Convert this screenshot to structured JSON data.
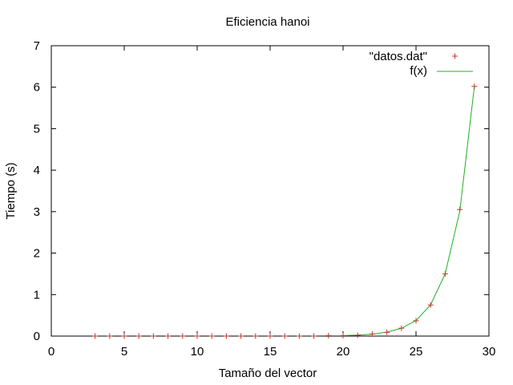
{
  "chart_data": {
    "type": "scatter",
    "title": "Eficiencia hanoi",
    "xlabel": "Tamaño del vector",
    "ylabel": "Tiempo (s)",
    "xlim": [
      0,
      30
    ],
    "ylim": [
      0,
      7
    ],
    "xticks": [
      0,
      5,
      10,
      15,
      20,
      25,
      30
    ],
    "yticks": [
      0,
      1,
      2,
      3,
      4,
      5,
      6,
      7
    ],
    "grid": false,
    "legend_position": "top-right",
    "series": [
      {
        "name": "\"datos.dat\"",
        "style": "points",
        "marker": "+",
        "color": "#c0392b",
        "x": [
          3,
          4,
          5,
          6,
          7,
          8,
          9,
          10,
          11,
          12,
          13,
          14,
          15,
          16,
          17,
          18,
          19,
          20,
          21,
          22,
          23,
          24,
          25,
          26,
          27,
          28,
          29
        ],
        "y": [
          0,
          0,
          0,
          0,
          0,
          0,
          0,
          0,
          0,
          0,
          0,
          0,
          0,
          0,
          0,
          0,
          0.01,
          0.01,
          0.02,
          0.05,
          0.09,
          0.19,
          0.37,
          0.75,
          1.5,
          3.05,
          6.02
        ]
      },
      {
        "name": "f(x)",
        "style": "line",
        "color": "#20b020",
        "formula": "exponential fit",
        "x": [
          20,
          21,
          22,
          23,
          24,
          25,
          26,
          27,
          28,
          29
        ],
        "y": [
          0.012,
          0.024,
          0.047,
          0.094,
          0.188,
          0.376,
          0.753,
          1.505,
          3.01,
          6.02
        ]
      }
    ]
  }
}
